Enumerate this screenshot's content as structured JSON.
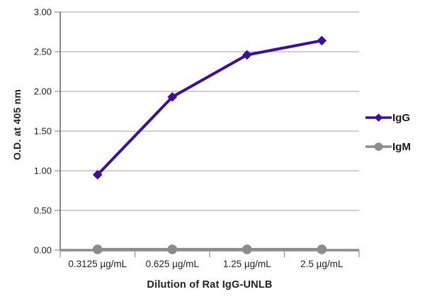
{
  "chart_data": {
    "type": "line",
    "title": "",
    "categories": [
      "0.3125 µg/mL",
      "0.625 µg/mL",
      "1.25 µg/mL",
      "2.5 µg/mL"
    ],
    "series": [
      {
        "name": "IgG",
        "values": [
          0.95,
          1.93,
          2.46,
          2.64
        ],
        "color": "#3f0d9b",
        "marker": "diamond"
      },
      {
        "name": "IgM",
        "values": [
          0.01,
          0.01,
          0.01,
          0.01
        ],
        "color": "#8c8c8c",
        "marker": "circle"
      }
    ],
    "xlabel": "Dilution of Rat IgG-UNLB",
    "ylabel": "O.D. at 405 nm",
    "ylim": [
      0,
      3
    ],
    "ytick_step": 0.5,
    "ytick_labels": [
      "0.00",
      "0.50",
      "1.00",
      "1.50",
      "2.00",
      "2.50",
      "3.00"
    ],
    "grid": true,
    "legend_position": "right"
  },
  "style_colors": {
    "gridline": "#b3b3b3",
    "axis_line": "#595959",
    "tick": "#999999",
    "baseline": "#8c8c8c",
    "text": "#231f20"
  }
}
